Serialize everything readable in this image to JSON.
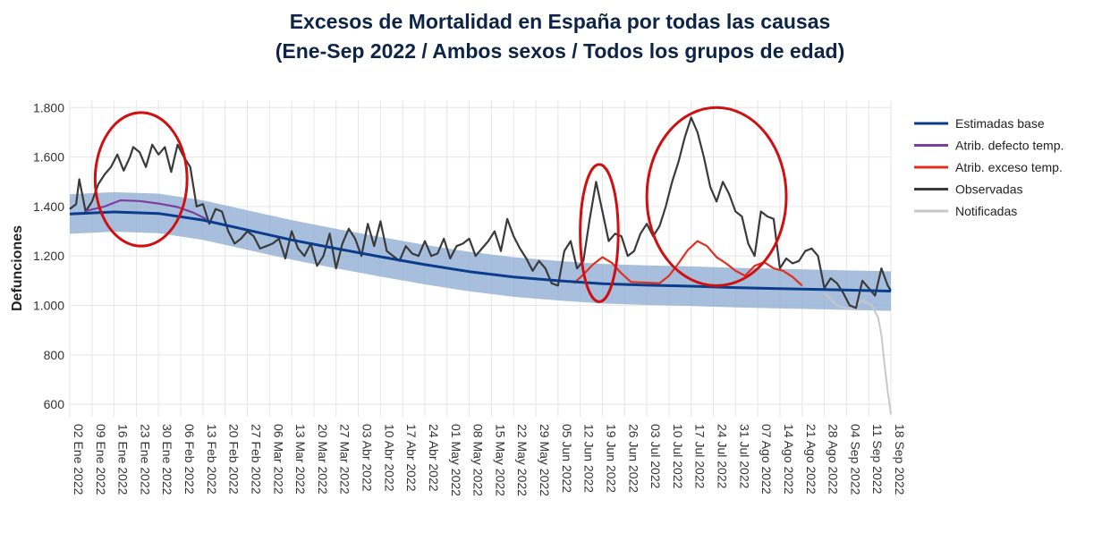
{
  "chart_data": {
    "type": "line",
    "title_line1": "Excesos de Mortalidad en España por todas las causas",
    "title_line2": "(Ene-Sep 2022 / Ambos sexos / Todos los grupos de edad)",
    "xlabel": "",
    "ylabel": "Defunciones",
    "ylim": [
      550,
      1830
    ],
    "yticks": [
      600,
      800,
      1000,
      1200,
      1400,
      1600,
      1800
    ],
    "ytick_labels": [
      "600",
      "800",
      "1.000",
      "1.200",
      "1.400",
      "1.600",
      "1.800"
    ],
    "x_start": "2022-01-02",
    "x_end": "2022-09-18",
    "xtick_labels": [
      "02 Ene 2022",
      "09 Ene 2022",
      "16 Ene 2022",
      "23 Ene 2022",
      "30 Ene 2022",
      "06 Feb 2022",
      "13 Feb 2022",
      "20 Feb 2022",
      "27 Feb 2022",
      "06 Mar 2022",
      "13 Mar 2022",
      "20 Mar 2022",
      "27 Mar 2022",
      "03 Abr 2022",
      "10 Abr 2022",
      "17 Abr 2022",
      "24 Abr 2022",
      "01 May 2022",
      "08 May 2022",
      "15 May 2022",
      "22 May 2022",
      "29 May 2022",
      "05 Jun 2022",
      "12 Jun 2022",
      "19 Jun 2022",
      "26 Jun 2022",
      "03 Jul 2022",
      "10 Jul 2022",
      "17 Jul 2022",
      "24 Jul 2022",
      "31 Jul 2022",
      "07 Ago 2022",
      "14 Ago 2022",
      "21 Ago 2022",
      "28 Ago 2022",
      "04 Sep 2022",
      "11 Sep 2022",
      "18 Sep 2022"
    ],
    "grid": true,
    "legend_position": "right",
    "series": [
      {
        "name": "Estimadas base",
        "color": "#0b3c8c",
        "x": [
          "2022-01-02",
          "2022-01-16",
          "2022-01-30",
          "2022-02-13",
          "2022-02-27",
          "2022-03-13",
          "2022-03-27",
          "2022-04-10",
          "2022-04-24",
          "2022-05-08",
          "2022-05-22",
          "2022-06-05",
          "2022-06-19",
          "2022-07-03",
          "2022-07-17",
          "2022-07-31",
          "2022-08-14",
          "2022-08-28",
          "2022-09-18"
        ],
        "y": [
          1370,
          1378,
          1372,
          1345,
          1305,
          1265,
          1230,
          1197,
          1165,
          1137,
          1115,
          1100,
          1088,
          1082,
          1078,
          1072,
          1068,
          1064,
          1058
        ]
      },
      {
        "name": "Atrib. defecto temp.",
        "color": "#7b3fa0",
        "x": [
          "2022-01-07",
          "2022-01-13",
          "2022-01-18",
          "2022-01-24",
          "2022-01-30",
          "2022-02-05",
          "2022-02-10",
          "2022-02-14"
        ],
        "y": [
          1382,
          1400,
          1425,
          1422,
          1412,
          1398,
          1375,
          1350
        ]
      },
      {
        "name": "Atrib. exceso temp.",
        "color": "#e03020",
        "x": [
          "2022-06-10",
          "2022-06-13",
          "2022-06-16",
          "2022-06-19",
          "2022-06-22",
          "2022-06-25",
          "2022-06-28",
          "2022-07-07",
          "2022-07-10",
          "2022-07-13",
          "2022-07-16",
          "2022-07-19",
          "2022-07-22",
          "2022-07-25",
          "2022-07-28",
          "2022-07-31",
          "2022-08-03",
          "2022-08-06",
          "2022-08-09",
          "2022-08-12",
          "2022-08-15",
          "2022-08-18",
          "2022-08-21"
        ],
        "y": [
          1090,
          1125,
          1165,
          1195,
          1172,
          1130,
          1095,
          1090,
          1120,
          1170,
          1225,
          1260,
          1240,
          1195,
          1170,
          1140,
          1120,
          1160,
          1175,
          1150,
          1140,
          1115,
          1080
        ]
      },
      {
        "name": "Observadas",
        "color": "#3a3a3a",
        "x": [
          "2022-01-02",
          "2022-01-04",
          "2022-01-05",
          "2022-01-07",
          "2022-01-09",
          "2022-01-11",
          "2022-01-13",
          "2022-01-15",
          "2022-01-17",
          "2022-01-19",
          "2022-01-21",
          "2022-01-22",
          "2022-01-24",
          "2022-01-26",
          "2022-01-28",
          "2022-01-30",
          "2022-02-01",
          "2022-02-03",
          "2022-02-05",
          "2022-02-07",
          "2022-02-09",
          "2022-02-11",
          "2022-02-13",
          "2022-02-15",
          "2022-02-17",
          "2022-02-19",
          "2022-02-21",
          "2022-02-23",
          "2022-02-25",
          "2022-02-27",
          "2022-03-01",
          "2022-03-03",
          "2022-03-05",
          "2022-03-07",
          "2022-03-09",
          "2022-03-11",
          "2022-03-13",
          "2022-03-15",
          "2022-03-17",
          "2022-03-19",
          "2022-03-21",
          "2022-03-23",
          "2022-03-25",
          "2022-03-27",
          "2022-03-29",
          "2022-03-31",
          "2022-04-02",
          "2022-04-04",
          "2022-04-06",
          "2022-04-08",
          "2022-04-10",
          "2022-04-12",
          "2022-04-14",
          "2022-04-16",
          "2022-04-18",
          "2022-04-20",
          "2022-04-22",
          "2022-04-24",
          "2022-04-26",
          "2022-04-28",
          "2022-04-30",
          "2022-05-02",
          "2022-05-04",
          "2022-05-06",
          "2022-05-08",
          "2022-05-10",
          "2022-05-12",
          "2022-05-14",
          "2022-05-16",
          "2022-05-18",
          "2022-05-20",
          "2022-05-22",
          "2022-05-24",
          "2022-05-26",
          "2022-05-28",
          "2022-05-30",
          "2022-06-01",
          "2022-06-03",
          "2022-06-05",
          "2022-06-07",
          "2022-06-09",
          "2022-06-11",
          "2022-06-13",
          "2022-06-15",
          "2022-06-17",
          "2022-06-19",
          "2022-06-21",
          "2022-06-23",
          "2022-06-25",
          "2022-06-27",
          "2022-06-29",
          "2022-07-01",
          "2022-07-03",
          "2022-07-05",
          "2022-07-07",
          "2022-07-09",
          "2022-07-11",
          "2022-07-13",
          "2022-07-15",
          "2022-07-17",
          "2022-07-19",
          "2022-07-21",
          "2022-07-23",
          "2022-07-25",
          "2022-07-27",
          "2022-07-29",
          "2022-07-31",
          "2022-08-02",
          "2022-08-04",
          "2022-08-06",
          "2022-08-08",
          "2022-08-10",
          "2022-08-12",
          "2022-08-14",
          "2022-08-16",
          "2022-08-18",
          "2022-08-20",
          "2022-08-22",
          "2022-08-24",
          "2022-08-26",
          "2022-08-28",
          "2022-08-30",
          "2022-09-01",
          "2022-09-03",
          "2022-09-05",
          "2022-09-07",
          "2022-09-09",
          "2022-09-11",
          "2022-09-13",
          "2022-09-15",
          "2022-09-17",
          "2022-09-18"
        ],
        "y": [
          1390,
          1410,
          1510,
          1380,
          1420,
          1490,
          1530,
          1560,
          1610,
          1545,
          1600,
          1640,
          1620,
          1560,
          1650,
          1610,
          1640,
          1540,
          1650,
          1600,
          1560,
          1400,
          1410,
          1330,
          1390,
          1380,
          1300,
          1250,
          1270,
          1300,
          1280,
          1230,
          1240,
          1250,
          1270,
          1190,
          1300,
          1230,
          1200,
          1250,
          1160,
          1200,
          1290,
          1150,
          1250,
          1310,
          1270,
          1200,
          1330,
          1240,
          1340,
          1220,
          1200,
          1180,
          1240,
          1210,
          1200,
          1260,
          1200,
          1210,
          1270,
          1190,
          1240,
          1250,
          1270,
          1200,
          1230,
          1260,
          1300,
          1220,
          1350,
          1280,
          1230,
          1190,
          1140,
          1180,
          1150,
          1090,
          1080,
          1220,
          1260,
          1150,
          1180,
          1350,
          1500,
          1380,
          1260,
          1290,
          1280,
          1200,
          1220,
          1290,
          1330,
          1280,
          1320,
          1400,
          1500,
          1580,
          1680,
          1760,
          1700,
          1600,
          1480,
          1420,
          1500,
          1450,
          1380,
          1360,
          1250,
          1200,
          1380,
          1360,
          1350,
          1150,
          1190,
          1170,
          1180,
          1220,
          1230,
          1200,
          1070,
          1110,
          1090,
          1050,
          1000,
          990,
          1100,
          1070,
          1040,
          1150,
          1080,
          1060
        ]
      },
      {
        "name": "Notificadas",
        "color": "#c8c8c8",
        "x": [
          "2022-08-28",
          "2022-09-01",
          "2022-09-05",
          "2022-09-09",
          "2022-09-12",
          "2022-09-14",
          "2022-09-15",
          "2022-09-16",
          "2022-09-17",
          "2022-09-18"
        ],
        "y": [
          1050,
          1000,
          985,
          1020,
          1000,
          950,
          880,
          760,
          650,
          560
        ]
      }
    ],
    "band": {
      "color": "#8aa9d2",
      "x": [
        "2022-01-02",
        "2022-01-16",
        "2022-01-30",
        "2022-02-13",
        "2022-02-27",
        "2022-03-13",
        "2022-03-27",
        "2022-04-10",
        "2022-04-24",
        "2022-05-08",
        "2022-05-22",
        "2022-06-05",
        "2022-06-19",
        "2022-07-03",
        "2022-07-17",
        "2022-07-31",
        "2022-08-14",
        "2022-08-28",
        "2022-09-18"
      ],
      "upper": [
        1450,
        1458,
        1452,
        1425,
        1385,
        1345,
        1310,
        1277,
        1245,
        1217,
        1195,
        1180,
        1168,
        1162,
        1158,
        1152,
        1148,
        1144,
        1138
      ],
      "lower": [
        1290,
        1298,
        1292,
        1265,
        1225,
        1185,
        1150,
        1117,
        1085,
        1057,
        1035,
        1020,
        1008,
        1002,
        998,
        992,
        988,
        984,
        978
      ]
    },
    "ellipses_color": "#d01010"
  }
}
